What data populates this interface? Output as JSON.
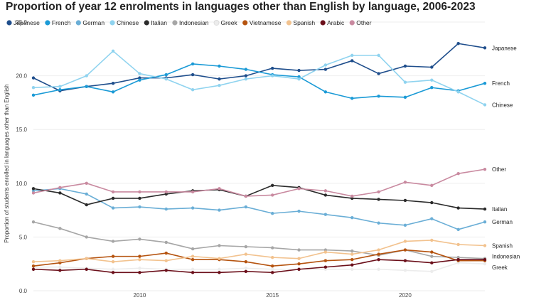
{
  "chart_data": {
    "type": "line",
    "title": "Proportion of year 12 enrolments in languages other than English by language, 2006-2023",
    "ylabel": "Proportion of students enrolled in languages other than English",
    "xlabel": "",
    "ylim": [
      0,
      25
    ],
    "y_ticks": [
      "0.0",
      "5.0",
      "10.0",
      "15.0",
      "20.0",
      "25.0"
    ],
    "x_ticks": [
      "2010",
      "2015",
      "2020"
    ],
    "x": [
      2006,
      2007,
      2008,
      2009,
      2010,
      2011,
      2012,
      2013,
      2014,
      2015,
      2016,
      2017,
      2018,
      2019,
      2020,
      2021,
      2022,
      2023
    ],
    "legend_position": "top",
    "grid": true,
    "series": [
      {
        "name": "Japanese",
        "color": "#1f4e8c",
        "end_label": "Japanese",
        "values": [
          19.8,
          18.6,
          19.0,
          19.3,
          19.8,
          19.8,
          20.1,
          19.7,
          20.0,
          20.7,
          20.5,
          20.6,
          21.4,
          20.2,
          20.9,
          20.8,
          23.0,
          22.6
        ]
      },
      {
        "name": "French",
        "color": "#1a9ad6",
        "end_label": "French",
        "values": [
          18.2,
          18.7,
          19.0,
          18.5,
          19.6,
          20.1,
          21.1,
          20.9,
          20.6,
          20.1,
          19.9,
          18.5,
          17.9,
          18.1,
          18.0,
          18.9,
          18.6,
          19.3
        ]
      },
      {
        "name": "German",
        "color": "#6aaed6",
        "end_label": "German",
        "values": [
          9.3,
          9.5,
          9.0,
          7.7,
          7.8,
          7.6,
          7.7,
          7.5,
          7.8,
          7.2,
          7.4,
          7.1,
          6.8,
          6.3,
          6.1,
          6.7,
          5.7,
          6.4
        ]
      },
      {
        "name": "Chinese",
        "color": "#8fd3ef",
        "end_label": "Chinese",
        "values": [
          18.9,
          19.0,
          20.0,
          22.3,
          20.2,
          19.7,
          18.7,
          19.1,
          19.7,
          20.0,
          19.7,
          21.0,
          21.9,
          21.9,
          19.4,
          19.6,
          18.5,
          17.3
        ]
      },
      {
        "name": "Italian",
        "color": "#2b2b2b",
        "end_label": "Italian",
        "values": [
          9.5,
          9.1,
          8.0,
          8.6,
          8.6,
          9.0,
          9.3,
          9.4,
          8.8,
          9.8,
          9.6,
          8.9,
          8.6,
          8.5,
          8.4,
          8.2,
          7.7,
          7.6
        ]
      },
      {
        "name": "Indonesian",
        "color": "#a6a6a6",
        "end_label": "Indonesian",
        "values": [
          6.4,
          5.8,
          5.0,
          4.6,
          4.8,
          4.5,
          3.9,
          4.2,
          4.1,
          4.0,
          3.8,
          3.8,
          3.7,
          3.3,
          3.8,
          3.2,
          3.1,
          3.0
        ]
      },
      {
        "name": "Greek",
        "color": "#ececec",
        "end_label": "Greek",
        "values": [
          2.2,
          2.2,
          2.1,
          2.0,
          2.1,
          2.0,
          2.0,
          2.0,
          2.1,
          2.0,
          2.0,
          2.0,
          2.0,
          2.0,
          1.9,
          1.8,
          2.6,
          2.5
        ]
      },
      {
        "name": "Vietnamese",
        "color": "#b5530f",
        "end_label": "",
        "values": [
          2.3,
          2.6,
          3.0,
          3.2,
          3.2,
          3.5,
          2.9,
          2.9,
          2.7,
          2.3,
          2.5,
          2.8,
          2.9,
          3.4,
          3.8,
          3.6,
          2.8,
          2.8
        ]
      },
      {
        "name": "Spanish",
        "color": "#f2c28e",
        "end_label": "Spanish",
        "values": [
          2.7,
          2.8,
          3.0,
          2.7,
          2.9,
          2.8,
          3.2,
          3.0,
          3.4,
          3.1,
          3.0,
          3.6,
          3.4,
          3.8,
          4.6,
          4.7,
          4.3,
          4.2
        ]
      },
      {
        "name": "Arabic",
        "color": "#6b0f1a",
        "end_label": "",
        "values": [
          2.0,
          1.9,
          2.0,
          1.7,
          1.7,
          1.9,
          1.7,
          1.7,
          1.8,
          1.7,
          2.0,
          2.2,
          2.4,
          2.9,
          2.8,
          2.6,
          2.9,
          2.9
        ]
      },
      {
        "name": "Other",
        "color": "#c98aa0",
        "end_label": "Other",
        "values": [
          9.1,
          9.6,
          10.0,
          9.2,
          9.2,
          9.2,
          9.2,
          9.5,
          8.8,
          8.9,
          9.5,
          9.3,
          8.8,
          9.2,
          10.1,
          9.8,
          10.9,
          11.3
        ]
      }
    ]
  }
}
